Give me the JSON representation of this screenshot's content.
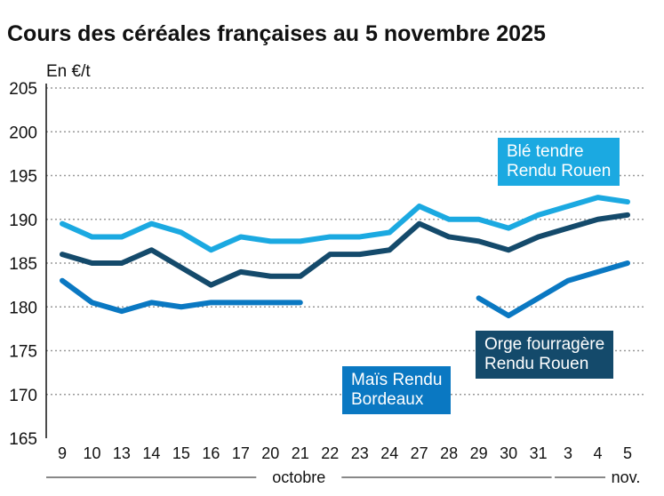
{
  "chart_data": {
    "type": "line",
    "title": "Cours des céréales françaises au 5 novembre 2025",
    "ylabel": "En €/t",
    "ylim": [
      165,
      205
    ],
    "yticks": [
      165,
      170,
      175,
      180,
      185,
      190,
      195,
      200,
      205
    ],
    "grid": true,
    "categories": [
      "9",
      "10",
      "13",
      "14",
      "15",
      "16",
      "17",
      "20",
      "21",
      "22",
      "23",
      "24",
      "27",
      "28",
      "29",
      "30",
      "31",
      "3",
      "4",
      "5"
    ],
    "month_groups": [
      {
        "label": "octobre",
        "from": 0,
        "to": 16
      },
      {
        "label": "nov.",
        "from": 17,
        "to": 19
      }
    ],
    "series": [
      {
        "name": "Blé tendre Rendu Rouen",
        "label_lines": [
          "Blé tendre",
          "Rendu Rouen"
        ],
        "color": "#1ba9e1",
        "values": [
          189.5,
          188,
          188,
          189.5,
          188.5,
          186.5,
          188,
          187.5,
          187.5,
          188,
          188,
          188.5,
          191.5,
          190,
          190,
          189,
          190.5,
          191.5,
          192.5,
          192
        ]
      },
      {
        "name": "Orge fourragère Rendu Rouen",
        "label_lines": [
          "Orge fourragère",
          "Rendu Rouen"
        ],
        "color": "#144a6b",
        "values": [
          186,
          185,
          185,
          186.5,
          184.5,
          182.5,
          184,
          183.5,
          183.5,
          186,
          186,
          186.5,
          189.5,
          188,
          187.5,
          186.5,
          188,
          189,
          190,
          190.5
        ]
      },
      {
        "name": "Maïs Rendu Bordeaux",
        "label_lines": [
          "Maïs Rendu",
          "Bordeaux"
        ],
        "color": "#0a78c2",
        "values": [
          183,
          180.5,
          179.5,
          180.5,
          180,
          180.5,
          180.5,
          180.5,
          180.5,
          null,
          null,
          null,
          null,
          null,
          181,
          179,
          181,
          183,
          184,
          185
        ]
      }
    ]
  }
}
